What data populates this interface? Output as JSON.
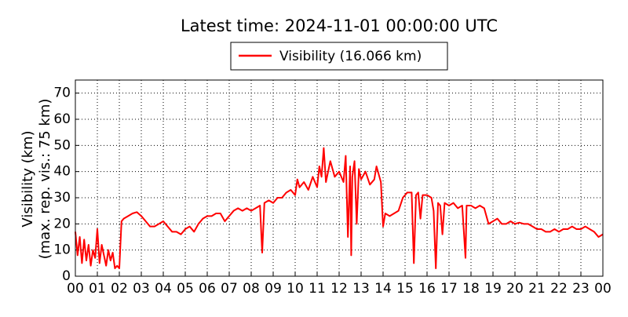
{
  "chart_data": {
    "type": "line",
    "title": "Latest time: 2024-11-01 00:00:00 UTC",
    "ylabel": [
      "Visibility (km)",
      "(max. rep. vis.: 75 km)"
    ],
    "legend_position": "top-center",
    "grid": true,
    "xlim": [
      0,
      24
    ],
    "xticks": [
      {
        "value": 0,
        "label": "00"
      },
      {
        "value": 1,
        "label": "01"
      },
      {
        "value": 2,
        "label": "02"
      },
      {
        "value": 3,
        "label": "03"
      },
      {
        "value": 4,
        "label": "04"
      },
      {
        "value": 5,
        "label": "05"
      },
      {
        "value": 6,
        "label": "06"
      },
      {
        "value": 7,
        "label": "07"
      },
      {
        "value": 8,
        "label": "08"
      },
      {
        "value": 9,
        "label": "09"
      },
      {
        "value": 10,
        "label": "10"
      },
      {
        "value": 11,
        "label": "11"
      },
      {
        "value": 12,
        "label": "12"
      },
      {
        "value": 13,
        "label": "13"
      },
      {
        "value": 14,
        "label": "14"
      },
      {
        "value": 15,
        "label": "15"
      },
      {
        "value": 16,
        "label": "16"
      },
      {
        "value": 17,
        "label": "17"
      },
      {
        "value": 18,
        "label": "18"
      },
      {
        "value": 19,
        "label": "19"
      },
      {
        "value": 20,
        "label": "20"
      },
      {
        "value": 21,
        "label": "21"
      },
      {
        "value": 22,
        "label": "22"
      },
      {
        "value": 23,
        "label": "23"
      },
      {
        "value": 24,
        "label": "00"
      }
    ],
    "ylim": [
      0,
      75
    ],
    "yticks": [
      0,
      10,
      20,
      30,
      40,
      50,
      60,
      70
    ],
    "x": [
      0,
      0.1,
      0.2,
      0.3,
      0.4,
      0.5,
      0.6,
      0.7,
      0.8,
      0.9,
      1.0,
      1.1,
      1.2,
      1.4,
      1.5,
      1.6,
      1.7,
      1.8,
      1.9,
      2.0,
      2.1,
      2.2,
      2.4,
      2.6,
      2.8,
      3.0,
      3.2,
      3.4,
      3.6,
      3.8,
      4.0,
      4.2,
      4.4,
      4.6,
      4.8,
      5.0,
      5.2,
      5.4,
      5.6,
      5.8,
      6.0,
      6.2,
      6.4,
      6.6,
      6.8,
      7.0,
      7.2,
      7.4,
      7.6,
      7.8,
      8.0,
      8.2,
      8.4,
      8.5,
      8.6,
      8.8,
      9.0,
      9.2,
      9.4,
      9.6,
      9.8,
      10.0,
      10.1,
      10.2,
      10.4,
      10.6,
      10.8,
      11.0,
      11.1,
      11.2,
      11.3,
      11.4,
      11.6,
      11.8,
      12.0,
      12.2,
      12.3,
      12.4,
      12.5,
      12.55,
      12.6,
      12.7,
      12.8,
      12.9,
      13.0,
      13.2,
      13.4,
      13.6,
      13.7,
      13.9,
      14.0,
      14.1,
      14.3,
      14.5,
      14.7,
      14.9,
      15.1,
      15.3,
      15.4,
      15.5,
      15.6,
      15.7,
      15.8,
      16.0,
      16.2,
      16.3,
      16.4,
      16.5,
      16.6,
      16.7,
      16.8,
      17.0,
      17.2,
      17.4,
      17.6,
      17.75,
      17.8,
      18.0,
      18.2,
      18.4,
      18.6,
      18.8,
      19.0,
      19.2,
      19.4,
      19.6,
      19.8,
      20.0,
      20.2,
      20.4,
      20.6,
      20.8,
      21.0,
      21.2,
      21.4,
      21.6,
      21.8,
      22.0,
      22.2,
      22.4,
      22.6,
      22.8,
      23.0,
      23.2,
      23.4,
      23.6,
      23.8,
      24.0
    ],
    "series": [
      {
        "name": "Visibility (16.066 km)",
        "color": "#ff0000",
        "values": [
          17,
          8,
          15,
          5,
          14,
          6,
          12,
          4,
          10,
          7,
          18,
          5,
          12,
          4,
          10,
          6,
          9,
          3,
          4,
          3,
          21,
          22,
          23,
          24,
          24.5,
          23,
          21,
          19,
          19,
          20,
          21,
          19,
          17,
          17,
          16,
          18,
          19,
          17,
          20,
          22,
          23,
          23,
          24,
          24,
          21,
          23,
          25,
          26,
          25,
          26,
          25,
          26,
          27,
          9,
          28,
          29,
          28,
          30,
          30,
          32,
          33,
          31,
          37,
          34,
          36,
          33,
          38,
          34,
          42,
          38,
          49,
          36,
          44,
          38,
          40,
          36,
          46,
          15,
          42,
          8,
          38,
          44,
          20,
          41,
          37,
          40,
          35,
          37,
          42,
          36,
          19,
          24,
          23,
          24,
          25,
          30,
          32,
          32,
          5,
          31,
          32,
          22,
          31,
          31,
          30,
          25,
          3,
          28,
          27,
          16,
          28,
          27,
          28,
          26,
          27,
          7,
          27,
          27,
          26,
          27,
          26,
          20,
          21,
          22,
          20,
          20,
          21,
          20,
          20.5,
          20,
          20,
          19,
          18,
          18,
          17,
          17,
          18,
          17,
          18,
          18,
          19,
          18,
          18,
          19,
          18,
          17,
          15,
          16
        ]
      }
    ]
  }
}
